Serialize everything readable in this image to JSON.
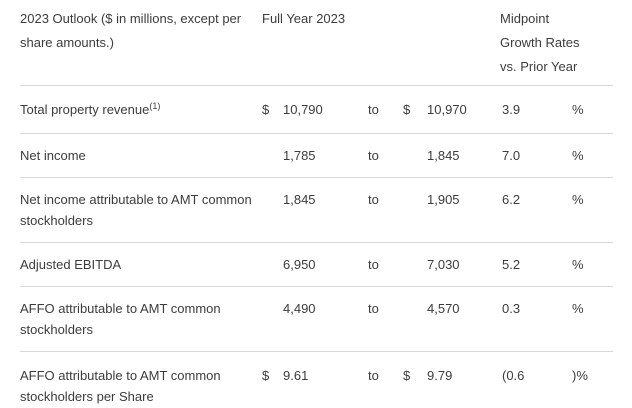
{
  "page": {
    "background_color": "#ffffff",
    "text_color": "#3c3c3c",
    "divider_color": "#d8d8d8"
  },
  "table": {
    "header": {
      "outlook_label": "2023 Outlook ($ in millions, except per share amounts.)",
      "full_year_label": "Full Year 2023",
      "growth_label": "Midpoint Growth Rates vs. Prior Year"
    },
    "rows": [
      {
        "label": "Total property revenue",
        "footnote": "(1)",
        "currency_low": "$",
        "low": "10,790",
        "to": "to",
        "currency_high": "$",
        "high": "10,970",
        "growth": "3.9",
        "percent": "%"
      },
      {
        "label": "Net income",
        "low": "1,785",
        "to": "to",
        "high": "1,845",
        "growth": "7.0",
        "percent": "%"
      },
      {
        "label": "Net income attributable to AMT common stockholders",
        "low": "1,845",
        "to": "to",
        "high": "1,905",
        "growth": "6.2",
        "percent": "%"
      },
      {
        "label": "Adjusted EBITDA",
        "low": "6,950",
        "to": "to",
        "high": "7,030",
        "growth": "5.2",
        "percent": "%"
      },
      {
        "label": "AFFO attributable to AMT common stockholders",
        "low": "4,490",
        "to": "to",
        "high": "4,570",
        "growth": "0.3",
        "percent": "%"
      },
      {
        "label": "AFFO attributable to AMT common stockholders per Share",
        "currency_low": "$",
        "low": "9.61",
        "to": "to",
        "currency_high": "$",
        "high": "9.79",
        "growth": "(0.6",
        "percent": ")%"
      }
    ]
  }
}
